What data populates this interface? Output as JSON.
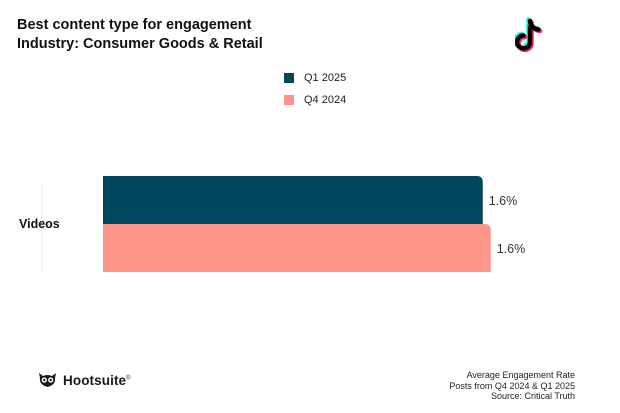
{
  "chart_data": {
    "type": "bar",
    "orientation": "horizontal",
    "title": "Best content type for engagement",
    "subtitle": "Industry: Consumer Goods & Retail",
    "categories": [
      "Videos"
    ],
    "series": [
      {
        "name": "Q1 2025",
        "values": [
          1.6
        ],
        "labels": [
          "1.6%"
        ],
        "color": "#00475e"
      },
      {
        "name": "Q4 2024",
        "values": [
          1.6
        ],
        "labels": [
          "1.6%"
        ],
        "color": "#ff948b"
      }
    ],
    "xlim": [
      0,
      1.7
    ],
    "xlabel": "",
    "ylabel": "",
    "grid": false,
    "legend": "top-center"
  },
  "branding": {
    "platform_icon": "tiktok-icon",
    "brand_icon": "owl-icon",
    "brand_name": "Hootsuite",
    "brand_mark": "®"
  },
  "footnote": {
    "metric": "Average Engagement Rate",
    "period": "Posts from Q4 2024 & Q1 2025",
    "source": "Source: Critical Truth"
  }
}
